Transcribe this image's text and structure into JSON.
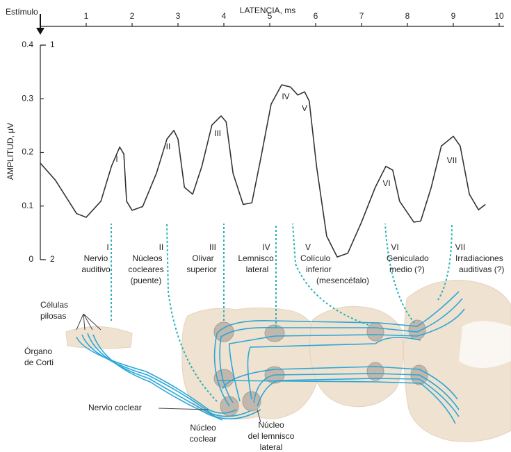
{
  "chart_data": {
    "type": "line",
    "xlabel": "LATENCIA, ms",
    "ylabel": "AMPLITUD, μV",
    "xlim": [
      0,
      10
    ],
    "xticks": [
      1,
      2,
      3,
      4,
      5,
      6,
      7,
      8,
      9,
      10
    ],
    "ylim": [
      0,
      0.4
    ],
    "yticks": [
      0,
      0.1,
      0.2,
      0.3,
      0.4
    ],
    "x": [
      0,
      0.33,
      0.79,
      1.0,
      1.32,
      1.55,
      1.73,
      1.82,
      1.88,
      2.0,
      2.23,
      2.53,
      2.76,
      2.91,
      3.0,
      3.14,
      3.32,
      3.52,
      3.74,
      3.94,
      4.05,
      4.2,
      4.42,
      4.61,
      4.8,
      5.03,
      5.26,
      5.45,
      5.61,
      5.76,
      5.86,
      6.02,
      6.24,
      6.47,
      6.7,
      7.0,
      7.3,
      7.53,
      7.68,
      7.83,
      8.14,
      8.29,
      8.52,
      8.74,
      9.0,
      9.15,
      9.35,
      9.55,
      9.7
    ],
    "series": [
      {
        "color": "#333333",
        "values": [
          0.18,
          0.148,
          0.086,
          0.079,
          0.109,
          0.174,
          0.21,
          0.197,
          0.109,
          0.092,
          0.099,
          0.161,
          0.225,
          0.241,
          0.225,
          0.135,
          0.122,
          0.174,
          0.251,
          0.268,
          0.257,
          0.161,
          0.103,
          0.106,
          0.187,
          0.29,
          0.326,
          0.322,
          0.307,
          0.313,
          0.296,
          0.174,
          0.044,
          0.005,
          0.012,
          0.07,
          0.135,
          0.174,
          0.167,
          0.109,
          0.07,
          0.072,
          0.135,
          0.212,
          0.23,
          0.212,
          0.122,
          0.093,
          0.103
        ]
      }
    ],
    "annotations": [
      "Estímulo",
      "1",
      "2"
    ],
    "peaks": [
      "I",
      "II",
      "III",
      "IV",
      "V",
      "VI",
      "VII"
    ]
  },
  "diagram": {
    "stations": [
      {
        "numeral": "I",
        "lines": [
          "Nervio",
          "auditivo"
        ]
      },
      {
        "numeral": "II",
        "lines": [
          "Núcleos",
          "cocleares",
          "(puente)"
        ]
      },
      {
        "numeral": "III",
        "lines": [
          "Olivar",
          "superior"
        ]
      },
      {
        "numeral": "IV",
        "lines": [
          "Lemnisco",
          "lateral"
        ]
      },
      {
        "numeral": "V",
        "lines": [
          "Colículo",
          "inferior",
          "(mesencéfalo)"
        ]
      },
      {
        "numeral": "VI",
        "lines": [
          "Geniculado",
          "medio (?)"
        ]
      },
      {
        "numeral": "VII",
        "lines": [
          "Irradiaciones",
          "auditivas (?)"
        ]
      }
    ],
    "labels": [
      [
        "Células",
        "pilosas"
      ],
      [
        "Órgano",
        "de Corti"
      ],
      [
        "Nervio coclear"
      ],
      [
        "Núcleo",
        "coclear"
      ],
      [
        "Núcleo",
        "del lemnisco",
        "lateral"
      ]
    ]
  }
}
